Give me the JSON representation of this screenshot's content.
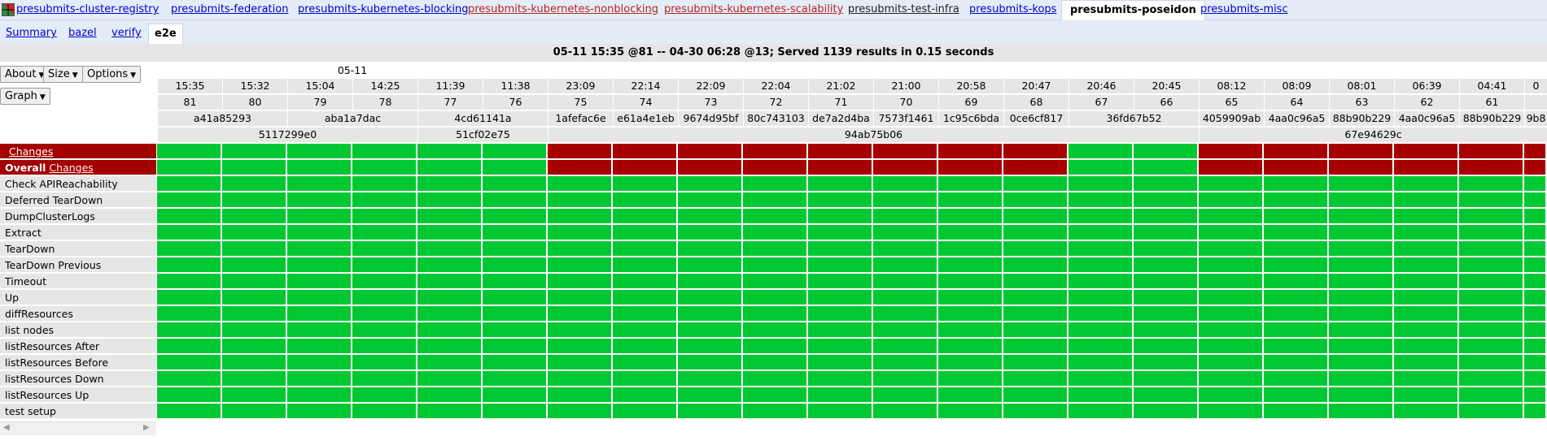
{
  "dashboard_tabs": [
    {
      "label": "presubmits-cluster-registry",
      "status": "good"
    },
    {
      "label": "presubmits-federation",
      "status": "good"
    },
    {
      "label": "presubmits-kubernetes-blocking",
      "status": "good"
    },
    {
      "label": "presubmits-kubernetes-nonblocking",
      "status": "bad"
    },
    {
      "label": "presubmits-kubernetes-scalability",
      "status": "bad"
    },
    {
      "label": "presubmits-test-infra",
      "status": "flaky"
    },
    {
      "label": "presubmits-kops",
      "status": "good"
    },
    {
      "label": "presubmits-poseidon",
      "status": "active"
    },
    {
      "label": "presubmits-misc",
      "status": "good"
    }
  ],
  "sub_tabs": [
    {
      "label": "Summary",
      "active": false
    },
    {
      "label": "bazel",
      "active": false
    },
    {
      "label": "verify",
      "active": false
    },
    {
      "label": "e2e",
      "active": true
    }
  ],
  "summary_text": "05-11 15:35 @81 -- 04-30 06:28 @13; Served 1139 results in 0.15 seconds",
  "controls": {
    "about": "About",
    "size": "Size",
    "options": "Options",
    "graph": "Graph"
  },
  "date_groups": [
    {
      "label": "05-11",
      "span": 6
    },
    {
      "label": "",
      "span": 14
    }
  ],
  "columns": [
    {
      "time": "15:35",
      "build": "81",
      "commit": "a41a85293",
      "status": "pass"
    },
    {
      "time": "15:32",
      "build": "80",
      "commit": "a41a85293",
      "status": "pass"
    },
    {
      "time": "15:04",
      "build": "79",
      "commit": "aba1a7dac",
      "status": "pass"
    },
    {
      "time": "14:25",
      "build": "78",
      "commit": "aba1a7dac",
      "status": "pass"
    },
    {
      "time": "11:39",
      "build": "77",
      "commit": "4cd61141a",
      "status": "pass"
    },
    {
      "time": "11:38",
      "build": "76",
      "commit": "4cd61141a",
      "status": "pass"
    },
    {
      "time": "23:09",
      "build": "75",
      "commit": "1afefac6e",
      "status": "fail"
    },
    {
      "time": "22:14",
      "build": "74",
      "commit": "e61a4e1eb",
      "status": "fail"
    },
    {
      "time": "22:09",
      "build": "73",
      "commit": "9674d95bf",
      "status": "fail"
    },
    {
      "time": "22:04",
      "build": "72",
      "commit": "80c743103",
      "status": "fail"
    },
    {
      "time": "21:02",
      "build": "71",
      "commit": "de7a2d4ba",
      "status": "fail"
    },
    {
      "time": "21:00",
      "build": "70",
      "commit": "7573f1461",
      "status": "fail"
    },
    {
      "time": "20:58",
      "build": "69",
      "commit": "1c95c6bda",
      "status": "fail"
    },
    {
      "time": "20:47",
      "build": "68",
      "commit": "0ce6cf817",
      "status": "fail"
    },
    {
      "time": "20:46",
      "build": "67",
      "commit": "36fd67b52",
      "status": "pass"
    },
    {
      "time": "20:45",
      "build": "66",
      "commit": "36fd67b52",
      "status": "pass"
    },
    {
      "time": "08:12",
      "build": "65",
      "commit": "4059909ab",
      "status": "fail"
    },
    {
      "time": "08:09",
      "build": "64",
      "commit": "4aa0c96a5",
      "status": "fail"
    },
    {
      "time": "08:01",
      "build": "63",
      "commit": "88b90b229",
      "status": "fail"
    },
    {
      "time": "06:39",
      "build": "62",
      "commit": "4aa0c96a5",
      "status": "fail"
    },
    {
      "time": "04:41",
      "build": "61",
      "commit": "88b90b229",
      "status": "fail"
    },
    {
      "time": "0",
      "build": "",
      "commit": "9b8",
      "status": "fail"
    }
  ],
  "commit_groups": [
    {
      "label": "a41a85293",
      "span": 2
    },
    {
      "label": "aba1a7dac",
      "span": 2
    },
    {
      "label": "4cd61141a",
      "span": 2
    },
    {
      "label": "1afefac6e",
      "span": 1
    },
    {
      "label": "e61a4e1eb",
      "span": 1
    },
    {
      "label": "9674d95bf",
      "span": 1
    },
    {
      "label": "80c743103",
      "span": 1
    },
    {
      "label": "de7a2d4ba",
      "span": 1
    },
    {
      "label": "7573f1461",
      "span": 1
    },
    {
      "label": "1c95c6bda",
      "span": 1
    },
    {
      "label": "0ce6cf817",
      "span": 1
    },
    {
      "label": "36fd67b52",
      "span": 2
    },
    {
      "label": "4059909ab",
      "span": 1
    },
    {
      "label": "4aa0c96a5",
      "span": 1
    },
    {
      "label": "88b90b229",
      "span": 1
    },
    {
      "label": "4aa0c96a5",
      "span": 1
    },
    {
      "label": "88b90b229",
      "span": 1
    },
    {
      "label": "9b8",
      "span": 1
    }
  ],
  "infra_groups": [
    {
      "label": "5117299e0",
      "span": 4
    },
    {
      "label": "51cf02e75",
      "span": 2
    },
    {
      "label": "94ab75b06",
      "span": 10
    },
    {
      "label": "67e94629c",
      "span": 6
    }
  ],
  "rows": [
    {
      "label": "Changes",
      "kind": "changes"
    },
    {
      "label": "Overall",
      "link": "Changes",
      "kind": "overall"
    },
    {
      "label": "Check APIReachability",
      "kind": "test"
    },
    {
      "label": "Deferred TearDown",
      "kind": "test"
    },
    {
      "label": "DumpClusterLogs",
      "kind": "test"
    },
    {
      "label": "Extract",
      "kind": "test"
    },
    {
      "label": "TearDown",
      "kind": "test"
    },
    {
      "label": "TearDown Previous",
      "kind": "test"
    },
    {
      "label": "Timeout",
      "kind": "test"
    },
    {
      "label": "Up",
      "kind": "test"
    },
    {
      "label": "diffResources",
      "kind": "test"
    },
    {
      "label": "list nodes",
      "kind": "test"
    },
    {
      "label": "listResources After",
      "kind": "test"
    },
    {
      "label": "listResources Before",
      "kind": "test"
    },
    {
      "label": "listResources Down",
      "kind": "test"
    },
    {
      "label": "listResources Up",
      "kind": "test"
    },
    {
      "label": "test setup",
      "kind": "test"
    }
  ],
  "colors": {
    "pass": "#00c832",
    "fail": "#a80000",
    "header": "#e6e6e6"
  },
  "icons": {
    "scroll_left": "triangle-left",
    "scroll_right": "triangle-right",
    "menu_caret": "caret-down"
  }
}
